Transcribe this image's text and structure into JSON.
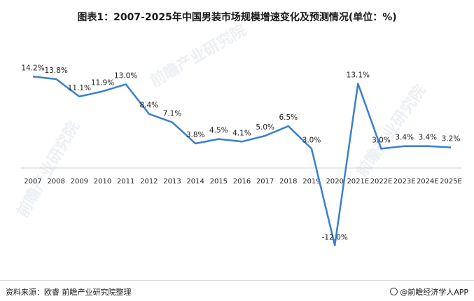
{
  "title": "图表1：2007-2025年中国男装市场规模增速变化及预测情况(单位：%)",
  "source": "资料来源：欧睿 前瞻产业研究院整理",
  "brand": "@前瞻经济学人APP",
  "watermark": "前瞻产业研究院",
  "colors": {
    "line": "#3a7fcf",
    "axis": "#d0d0d0"
  },
  "chart_data": {
    "type": "line",
    "title": "图表1：2007-2025年中国男装市场规模增速变化及预测情况(单位：%)",
    "xlabel": "",
    "ylabel": "",
    "categories": [
      "2007",
      "2008",
      "2009",
      "2010",
      "2011",
      "2012",
      "2013",
      "2014",
      "2015",
      "2016",
      "2017",
      "2018",
      "2019",
      "2020",
      "2021E",
      "2022E",
      "2023E",
      "2024E",
      "2025E"
    ],
    "series": [
      {
        "values": [
          14.2,
          13.8,
          11.1,
          11.9,
          13.0,
          8.4,
          7.1,
          3.8,
          4.5,
          4.1,
          5.0,
          6.5,
          3.0,
          -12.0,
          13.1,
          3.0,
          3.4,
          3.4,
          3.2
        ],
        "labels": [
          "14.2%",
          "13.8%",
          "11.1%",
          "11.9%",
          "13.0%",
          "8.4%",
          "7.1%",
          "3.8%",
          "4.5%",
          "4.1%",
          "5.0%",
          "6.5%",
          "3.0%",
          "-12.0%",
          "13.1%",
          "3.0%",
          "3.4%",
          "3.4%",
          "3.2%"
        ]
      }
    ],
    "grid": false,
    "legend": "none"
  }
}
